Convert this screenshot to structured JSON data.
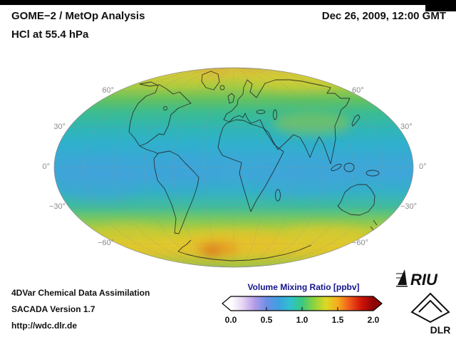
{
  "header": {
    "title_line1": "GOME−2 / MetOp Analysis",
    "title_line2": "HCl at 55.4 hPa",
    "datetime": "Dec 26, 2009, 12:00 GMT"
  },
  "map": {
    "lat_labels": [
      "60°",
      "30°",
      "0°",
      "−30°",
      "−60°"
    ]
  },
  "colorbar": {
    "title": "Volume Mixing Ratio [ppbv]",
    "ticks": [
      "0.0",
      "0.5",
      "1.0",
      "1.5",
      "2.0"
    ],
    "min": 0.0,
    "max": 2.0,
    "title_color": "#14148c",
    "gradient": [
      "#ffffff",
      "#e6d4f2",
      "#b39ce8",
      "#6e8ee6",
      "#3f9fe0",
      "#2fc2cf",
      "#3cc87e",
      "#8ed23e",
      "#dcd824",
      "#f6ac1e",
      "#f0581a",
      "#cf1408",
      "#8e0505"
    ]
  },
  "footer": {
    "line1": "4DVar Chemical Data Assimilation",
    "line2": "SACADA Version 1.7",
    "line3": "http://wdc.dlr.de"
  },
  "logos": {
    "riu": "RIU",
    "dlr": "DLR"
  },
  "chart_data": {
    "type": "heatmap",
    "title": "HCl at 55.4 hPa — GOME−2 / MetOp Analysis, Dec 26, 2009, 12:00 GMT",
    "projection": "mollweide-global",
    "colorbar": {
      "label": "Volume Mixing Ratio [ppbv]",
      "range": [
        0.0,
        2.0
      ],
      "tick_values": [
        0.0,
        0.5,
        1.0,
        1.5,
        2.0
      ]
    },
    "graticule_deg": 30,
    "zonal_mean_estimates_ppbv": [
      {
        "lat": 80,
        "value": 1.15
      },
      {
        "lat": 60,
        "value": 1.0
      },
      {
        "lat": 40,
        "value": 0.85
      },
      {
        "lat": 20,
        "value": 0.65
      },
      {
        "lat": 0,
        "value": 0.6
      },
      {
        "lat": -20,
        "value": 0.65
      },
      {
        "lat": -40,
        "value": 0.75
      },
      {
        "lat": -55,
        "value": 1.15
      },
      {
        "lat": -65,
        "value": 1.3
      },
      {
        "lat": -80,
        "value": 1.05
      }
    ]
  }
}
